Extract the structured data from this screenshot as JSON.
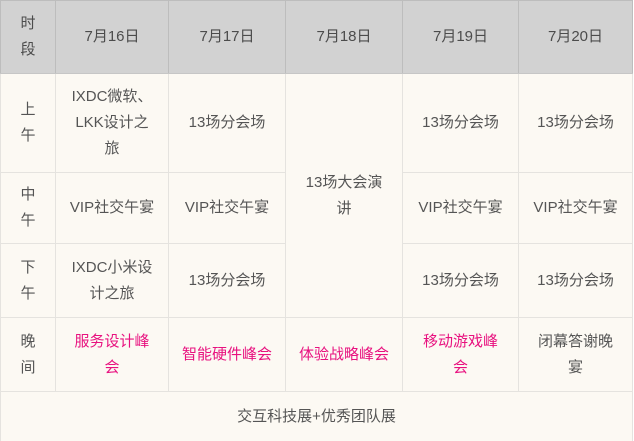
{
  "header": {
    "corner": "时段",
    "dates": [
      "7月16日",
      "7月17日",
      "7月18日",
      "7月19日",
      "7月20日"
    ]
  },
  "schedule": {
    "morning": {
      "label": "上午",
      "d16": "IXDC微软、LKK设计之旅",
      "d17": "13场分会场",
      "d19": "13场分会场",
      "d20": "13场分会场"
    },
    "keynote_merged": "13场大会演讲",
    "noon": {
      "label": "中午",
      "d16": "VIP社交午宴",
      "d17": "VIP社交午宴",
      "d19": "VIP社交午宴",
      "d20": "VIP社交午宴"
    },
    "afternoon": {
      "label": "下午",
      "d16": "IXDC小米设计之旅",
      "d17": "13场分会场",
      "d19": "13场分会场",
      "d20": "13场分会场"
    },
    "evening": {
      "label": "晚间",
      "d16": "服务设计峰会",
      "d17": "智能硬件峰会",
      "d18": "体验战略峰会",
      "d19": "移动游戏峰会",
      "d20": "闭幕答谢晚宴"
    },
    "footer": "交互科技展+优秀团队展"
  },
  "colors": {
    "header_bg": "#d2d2d2",
    "header_text": "#4c4c4c",
    "body_bg": "#fcf9f3",
    "body_text": "#555555",
    "highlight_pink": "#e8117f",
    "header_border": "#bdbdbd",
    "body_border": "#e5e3df"
  }
}
